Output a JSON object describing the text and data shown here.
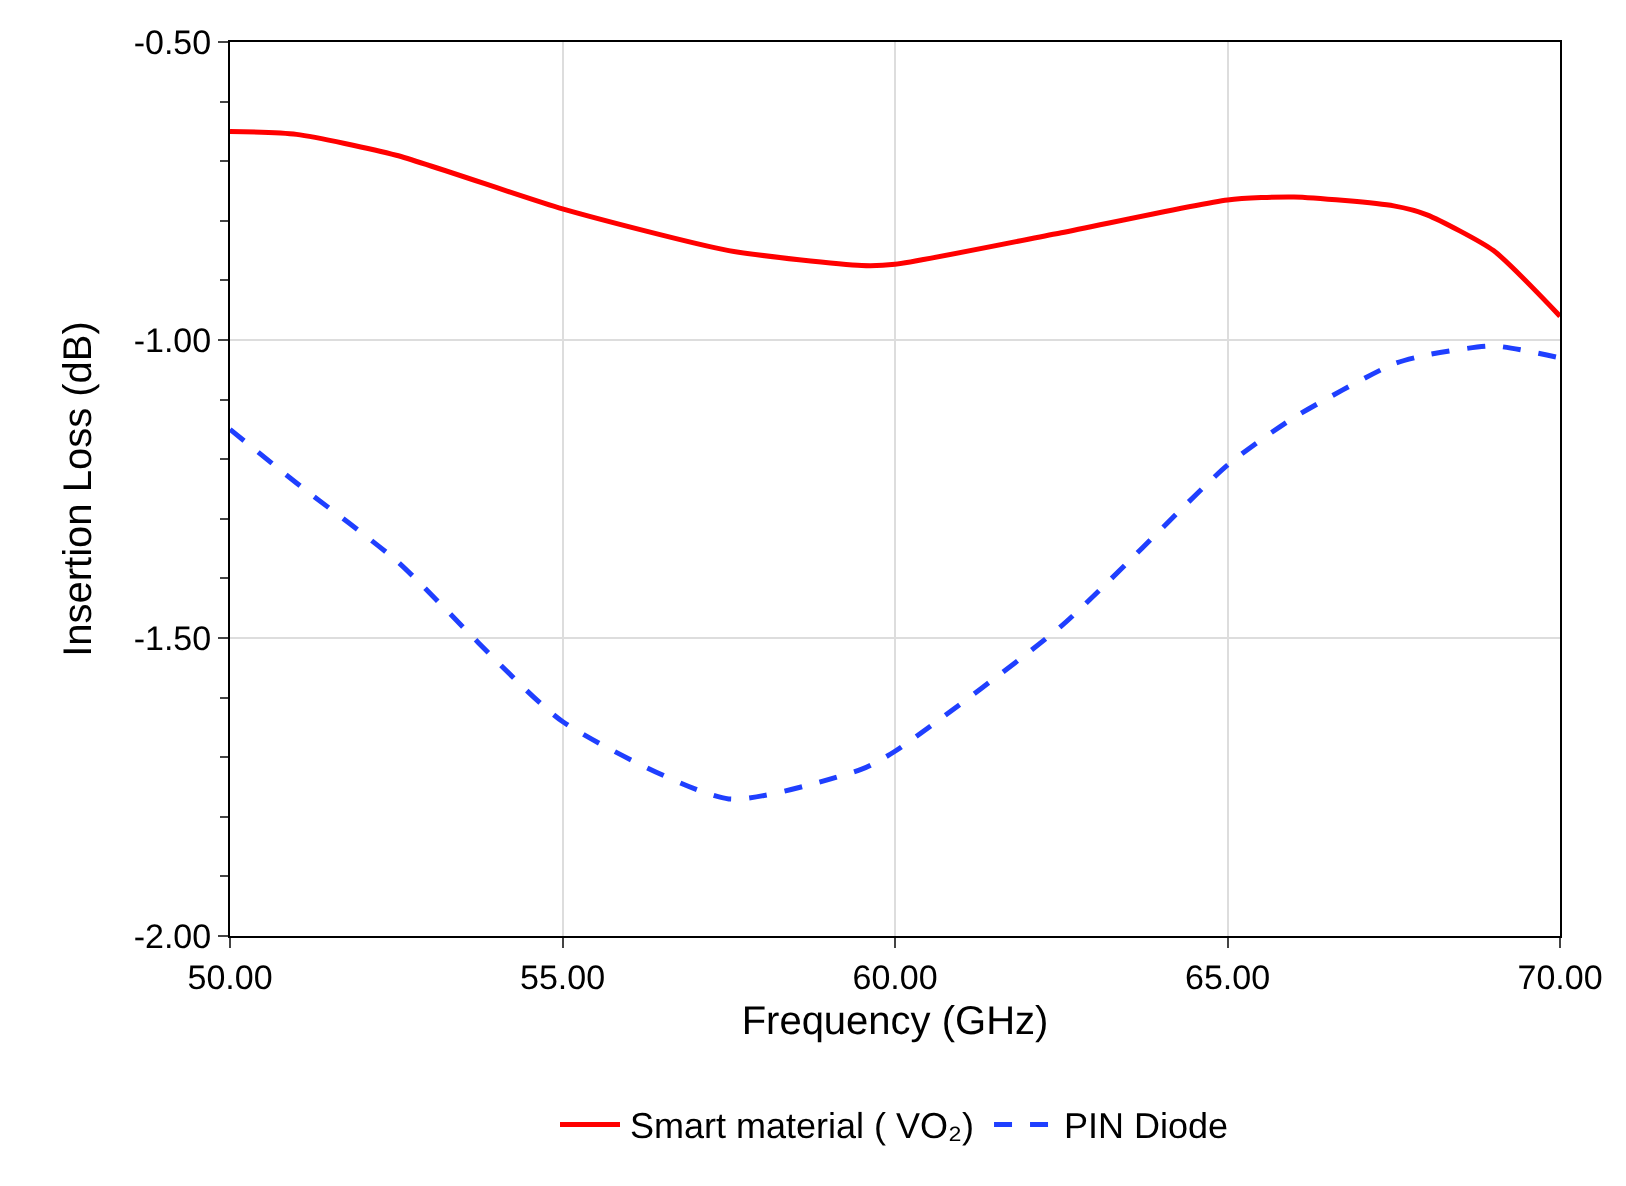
{
  "chart_data": {
    "type": "line",
    "xlabel": "Frequency (GHz)",
    "ylabel": "Insertion Loss (dB)",
    "xlim": [
      50,
      70
    ],
    "ylim": [
      -2.0,
      -0.5
    ],
    "xticks": [
      {
        "value": 50,
        "label": "50.00"
      },
      {
        "value": 55,
        "label": "55.00"
      },
      {
        "value": 60,
        "label": "60.00"
      },
      {
        "value": 65,
        "label": "65.00"
      },
      {
        "value": 70,
        "label": "70.00"
      }
    ],
    "yticks": [
      {
        "value": -2.0,
        "label": "-2.00"
      },
      {
        "value": -1.5,
        "label": "-1.50"
      },
      {
        "value": -1.0,
        "label": "-1.00"
      },
      {
        "value": -0.5,
        "label": "-0.50"
      }
    ],
    "x": [
      50,
      51,
      52.5,
      55,
      57.5,
      59.5,
      60,
      62.5,
      65,
      66,
      67.5,
      68,
      69,
      70
    ],
    "series": [
      {
        "name": "Smart material ( VO₂)",
        "color": "#ff0000",
        "line_style": "solid",
        "values": [
          -0.65,
          -0.655,
          -0.69,
          -0.78,
          -0.85,
          -0.875,
          -0.873,
          -0.82,
          -0.765,
          -0.76,
          -0.775,
          -0.79,
          -0.85,
          -0.96
        ]
      },
      {
        "name": "PIN Diode",
        "color": "#1f3fff",
        "line_style": "dashed",
        "values": [
          -1.15,
          -1.24,
          -1.37,
          -1.64,
          -1.77,
          -1.72,
          -1.69,
          -1.48,
          -1.21,
          -1.13,
          -1.04,
          -1.025,
          -1.01,
          -1.03
        ]
      }
    ],
    "grid": true,
    "legend": "bottom"
  }
}
